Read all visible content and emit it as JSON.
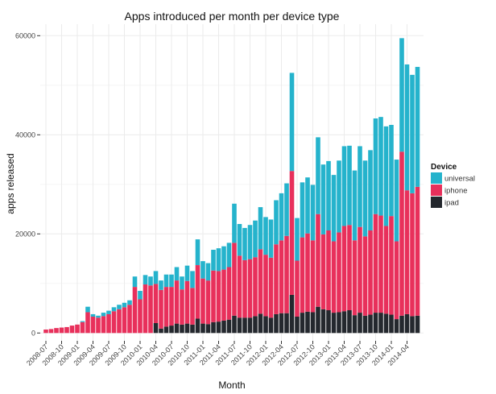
{
  "chart_data": {
    "type": "bar",
    "stacked": true,
    "title": "Apps introduced per month per device type",
    "xlabel": "Month",
    "ylabel": "apps released",
    "ylim": [
      0,
      62000
    ],
    "yticks": [
      0,
      20000,
      40000,
      60000
    ],
    "grid": true,
    "legend": {
      "title": "Device",
      "position": "right",
      "entries": [
        "universal",
        "iphone",
        "ipad"
      ]
    },
    "colors": {
      "universal": "#25b3cc",
      "iphone": "#e8305b",
      "ipad": "#24282e"
    },
    "x_tick_labels": [
      "2008-07",
      "2008-10",
      "2009-01",
      "2009-04",
      "2009-07",
      "2009-10",
      "2010-01",
      "2010-04",
      "2010-07",
      "2010-10",
      "2011-01",
      "2011-04",
      "2011-07",
      "2011-10",
      "2012-01",
      "2012-04",
      "2012-07",
      "2012-10",
      "2013-01",
      "2013-04",
      "2013-07",
      "2013-10",
      "2014-01",
      "2014-04"
    ],
    "categories": [
      "2008-07",
      "2008-08",
      "2008-09",
      "2008-10",
      "2008-11",
      "2008-12",
      "2009-01",
      "2009-02",
      "2009-03",
      "2009-04",
      "2009-05",
      "2009-06",
      "2009-07",
      "2009-08",
      "2009-09",
      "2009-10",
      "2009-11",
      "2009-12",
      "2010-01",
      "2010-02",
      "2010-03",
      "2010-04",
      "2010-05",
      "2010-06",
      "2010-07",
      "2010-08",
      "2010-09",
      "2010-10",
      "2010-11",
      "2010-12",
      "2011-01",
      "2011-02",
      "2011-03",
      "2011-04",
      "2011-05",
      "2011-06",
      "2011-07",
      "2011-08",
      "2011-09",
      "2011-10",
      "2011-11",
      "2011-12",
      "2012-01",
      "2012-02",
      "2012-03",
      "2012-04",
      "2012-05",
      "2012-06",
      "2012-07",
      "2012-08",
      "2012-09",
      "2012-10",
      "2012-11",
      "2012-12",
      "2013-01",
      "2013-02",
      "2013-03",
      "2013-04",
      "2013-05",
      "2013-06",
      "2013-07",
      "2013-08",
      "2013-09",
      "2013-10",
      "2013-11",
      "2013-12",
      "2014-01",
      "2014-02",
      "2014-03",
      "2014-04",
      "2014-05",
      "2014-06"
    ],
    "series": [
      {
        "name": "ipad",
        "values": [
          0,
          0,
          0,
          0,
          0,
          0,
          0,
          0,
          0,
          0,
          0,
          0,
          0,
          0,
          0,
          0,
          0,
          0,
          0,
          0,
          0,
          2000,
          900,
          1300,
          1500,
          1900,
          1700,
          1900,
          1700,
          2900,
          1900,
          1800,
          2200,
          2300,
          2500,
          2700,
          3500,
          3100,
          3100,
          3100,
          3400,
          3900,
          3400,
          3100,
          3800,
          4000,
          4000,
          7700,
          3300,
          4100,
          4300,
          4200,
          5300,
          4800,
          4600,
          4100,
          4200,
          4400,
          4600,
          3600,
          4100,
          3500,
          3700,
          4100,
          4100,
          3900,
          3700,
          2800,
          3500,
          3800,
          3400,
          3500
        ]
      },
      {
        "name": "iphone",
        "values": [
          700,
          800,
          1000,
          1100,
          1200,
          1500,
          1700,
          2200,
          4200,
          3300,
          3100,
          3400,
          3800,
          4400,
          4800,
          5200,
          5700,
          9300,
          6800,
          9800,
          9600,
          7900,
          7800,
          8000,
          7800,
          8700,
          7100,
          8600,
          7400,
          10800,
          9100,
          8800,
          10400,
          10200,
          10300,
          10600,
          14700,
          12500,
          11600,
          11800,
          11900,
          13000,
          12400,
          12100,
          14100,
          14700,
          15600,
          25000,
          11300,
          15200,
          15800,
          14500,
          18700,
          15100,
          16100,
          14400,
          16100,
          17200,
          17200,
          15100,
          17300,
          16000,
          17000,
          19900,
          19600,
          17700,
          19900,
          15700,
          33100,
          25000,
          24800,
          26000
        ]
      },
      {
        "name": "universal",
        "values": [
          0,
          0,
          0,
          0,
          0,
          0,
          0,
          200,
          1100,
          500,
          400,
          700,
          700,
          800,
          900,
          900,
          900,
          2100,
          1700,
          1900,
          1800,
          2600,
          1900,
          2500,
          2500,
          2700,
          2600,
          3100,
          3400,
          5200,
          3500,
          3500,
          4200,
          4600,
          4700,
          4900,
          7900,
          6400,
          6500,
          6900,
          7400,
          8500,
          7600,
          7700,
          8900,
          9500,
          10600,
          19800,
          8600,
          11100,
          11300,
          11200,
          15500,
          14100,
          14000,
          13400,
          14500,
          16100,
          16000,
          14100,
          16300,
          15300,
          16200,
          19300,
          19900,
          20100,
          18400,
          16500,
          22900,
          25400,
          23900,
          24200
        ]
      }
    ]
  }
}
